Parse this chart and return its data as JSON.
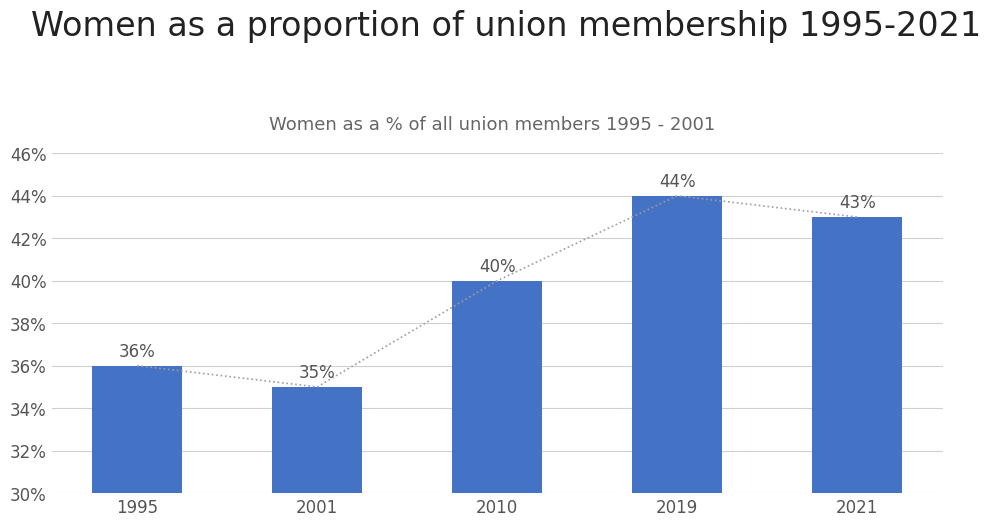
{
  "title": "Women as a proportion of union membership 1995-2021",
  "subtitle": "Women as a % of all union members 1995 - 2001",
  "categories": [
    "1995",
    "2001",
    "2010",
    "2019",
    "2021"
  ],
  "values": [
    36,
    35,
    40,
    44,
    43
  ],
  "bar_color": "#4472C4",
  "background_color": "#ffffff",
  "ylim": [
    30,
    46
  ],
  "yticks": [
    30,
    32,
    34,
    36,
    38,
    40,
    42,
    44,
    46
  ],
  "ytick_labels": [
    "30%",
    "32%",
    "34%",
    "36%",
    "38%",
    "40%",
    "42%",
    "44%",
    "46%"
  ],
  "title_fontsize": 24,
  "subtitle_fontsize": 13,
  "tick_fontsize": 12,
  "label_fontsize": 12,
  "dotted_line_color": "#9E9E9E"
}
